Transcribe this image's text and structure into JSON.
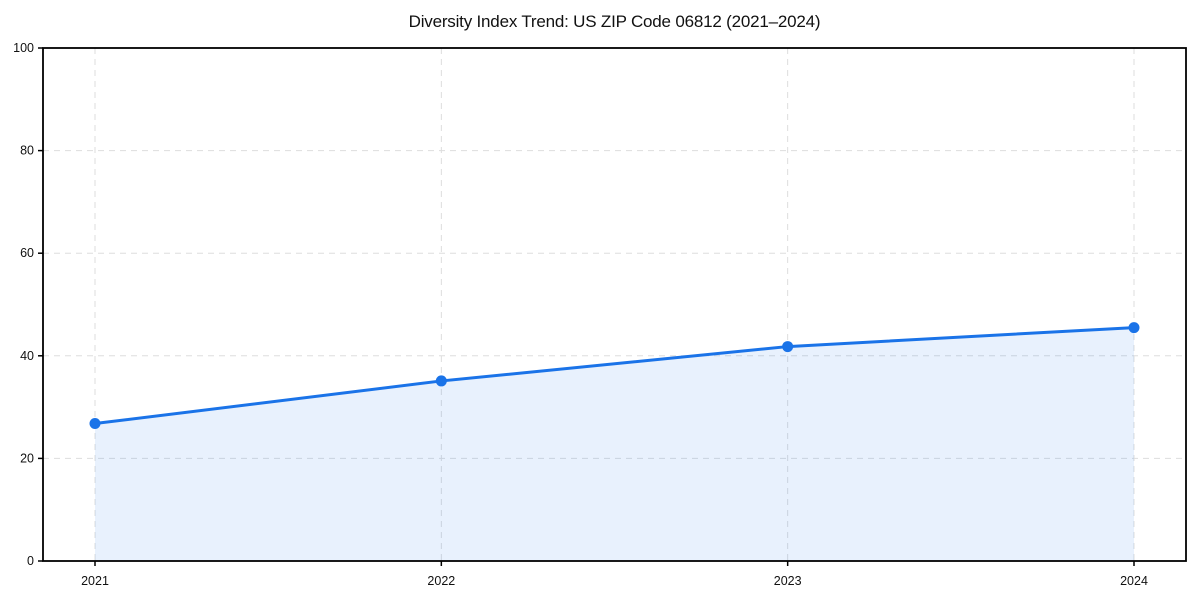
{
  "chart_data": {
    "type": "line",
    "title": "Diversity Index Trend: US ZIP Code 06812 (2021–2024)",
    "categories": [
      "2021",
      "2022",
      "2023",
      "2024"
    ],
    "values": [
      26.8,
      35.1,
      41.8,
      45.5
    ],
    "xlabel": "",
    "ylabel": "",
    "ylim": [
      0,
      100
    ],
    "yticks": [
      0,
      20,
      40,
      60,
      80,
      100
    ],
    "grid": true,
    "grid_style": "dashed",
    "legend": "none",
    "marker": "circle",
    "area_fill": true,
    "colors": {
      "line": "#1a73e8",
      "marker": "#1a73e8",
      "area_fill": "rgba(26,115,232,0.10)",
      "grid": "#dddddd",
      "axis": "#000000",
      "tick_text": "#111111",
      "background": "#ffffff"
    }
  }
}
